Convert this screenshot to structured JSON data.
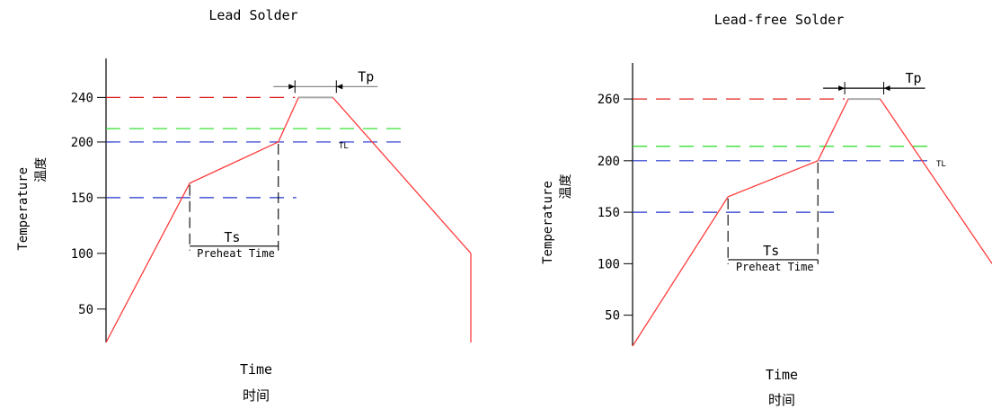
{
  "chart_data": [
    {
      "type": "line",
      "title": "Lead Solder",
      "ylabel": "Temperature",
      "ylabel_cn": "温度",
      "xlabel": "Time",
      "xlabel_cn": "时间",
      "yticks": [
        50,
        100,
        150,
        200,
        240
      ],
      "ylim": [
        20,
        275
      ],
      "x": [
        0,
        12,
        24.7,
        27.6,
        32.5,
        52.3
      ],
      "values": [
        20,
        163,
        200,
        240,
        240,
        100
      ],
      "series": [
        {
          "values": [
            20,
            163,
            200,
            240,
            240,
            100
          ],
          "color": "#ff3b3b"
        }
      ],
      "reference_lines": [
        {
          "y": 240,
          "color": "#e02020",
          "label": ""
        },
        {
          "y": 212,
          "color": "#22dd22",
          "label": "TL"
        },
        {
          "y": 200,
          "color": "#2233cc",
          "label": ""
        },
        {
          "y": 150,
          "color": "#2233cc",
          "label": ""
        }
      ],
      "annotations": {
        "tp": "Tp",
        "ts": "Ts",
        "preheat": "Preheat Time",
        "tl": "TL"
      }
    },
    {
      "type": "line",
      "title": "Lead-free Solder",
      "ylabel": "Temperature",
      "ylabel_cn": "温度",
      "xlabel": "Time",
      "xlabel_cn": "时间",
      "yticks": [
        50,
        100,
        150,
        200,
        260
      ],
      "ylim": [
        20,
        295
      ],
      "x": [
        0,
        13.8,
        26.8,
        31.2,
        35.8,
        52
      ],
      "values": [
        20,
        165,
        200,
        260,
        260,
        100
      ],
      "series": [
        {
          "values": [
            20,
            165,
            200,
            260,
            260,
            100
          ],
          "color": "#ff3b3b"
        }
      ],
      "reference_lines": [
        {
          "y": 260,
          "color": "#e02020",
          "label": ""
        },
        {
          "y": 214,
          "color": "#22dd22",
          "label": "TL"
        },
        {
          "y": 200,
          "color": "#2233cc",
          "label": ""
        },
        {
          "y": 150,
          "color": "#2233cc",
          "label": ""
        }
      ],
      "annotations": {
        "tp": "Tp",
        "ts": "Ts",
        "preheat": "Preheat Time",
        "tl": "TL"
      }
    }
  ]
}
